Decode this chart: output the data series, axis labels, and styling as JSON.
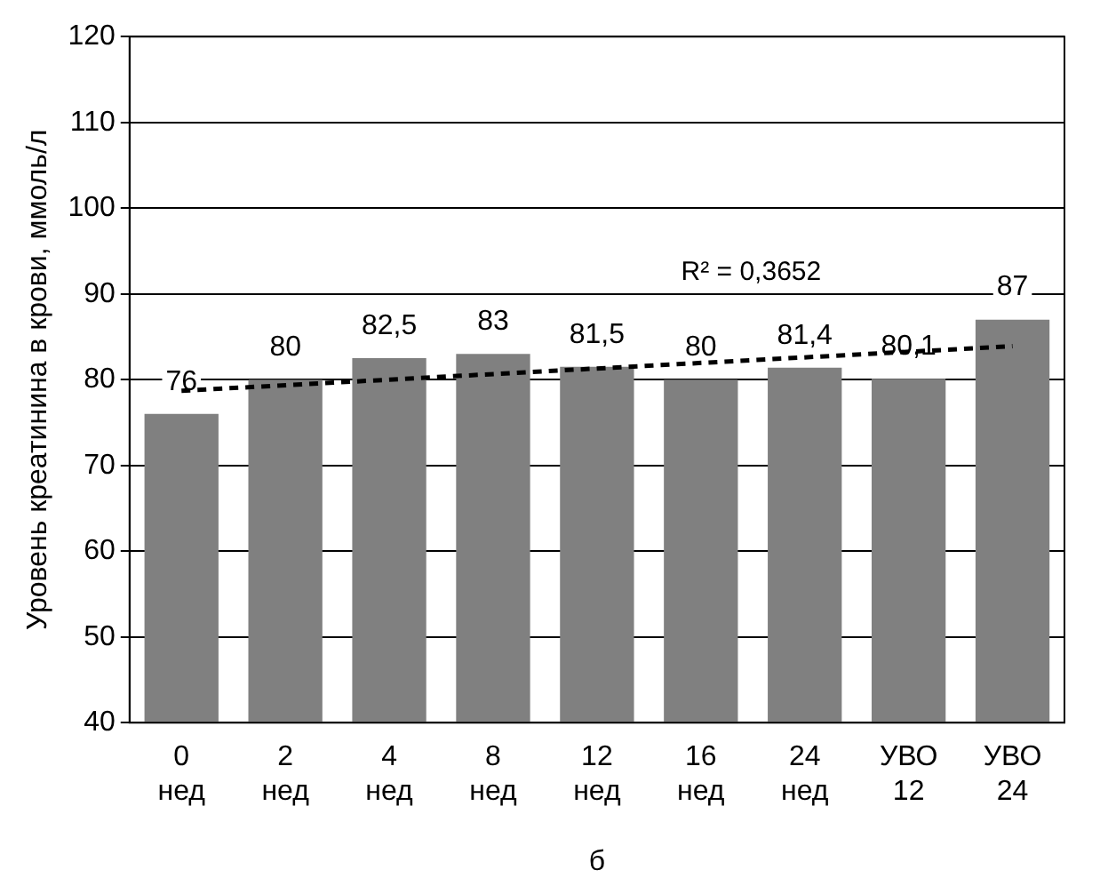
{
  "chart_data": {
    "type": "bar",
    "ylabel": "Уровень креатинина в крови, ммоль/л",
    "categories": [
      "0 нед",
      "2 нед",
      "4 нед",
      "8 нед",
      "12 нед",
      "16 нед",
      "24 нед",
      "УВО 12",
      "УВО 24"
    ],
    "series": [
      {
        "color": "#808080",
        "values": [
          76,
          80,
          82.5,
          83,
          81.5,
          80,
          81.4,
          80.1,
          87
        ],
        "value_labels": [
          "76",
          "80",
          "82,5",
          "83",
          "81,5",
          "80",
          "81,4",
          "80,1",
          "87"
        ]
      },
      {
        "type": "line",
        "color": "#000000",
        "line_style": "dashed",
        "x": [
          "0 нед",
          "УВО 24"
        ],
        "values": [
          78.7,
          83.9
        ]
      }
    ],
    "ylim": [
      40,
      120
    ],
    "yticks": [
      40,
      50,
      60,
      70,
      80,
      90,
      100,
      110,
      120
    ],
    "grid": "y",
    "legend": false,
    "annotations": [
      "R² = 0,3652",
      "б"
    ]
  }
}
